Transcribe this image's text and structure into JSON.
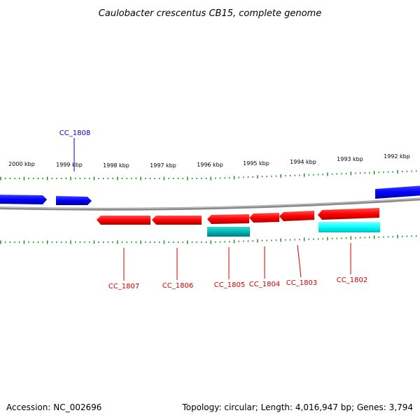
{
  "title": "Caulobacter crescentus CB15, complete genome",
  "footer": {
    "accession": "Accession: NC_002696",
    "summary": "Topology: circular; Length: 4,016,947 bp; Genes: 3,794"
  },
  "colors": {
    "forward_gene": "#0000ff",
    "reverse_gene": "#ff0000",
    "reverse_feature": "#00cccc",
    "reverse_feature_light": "#00ffff",
    "backbone": "#808080",
    "ticks": "#008000",
    "forward_label": "#0000cc",
    "reverse_label": "#cc0000"
  },
  "ruler": {
    "unit": "kbp",
    "ticks": [
      "2000 kbp",
      "1999 kbp",
      "1998 kbp",
      "1997 kbp",
      "1996 kbp",
      "1995 kbp",
      "1994 kbp",
      "1993 kbp",
      "1992 kbp"
    ]
  },
  "genes": [
    {
      "strand": "forward",
      "label": ""
    },
    {
      "strand": "forward",
      "label": "CC_1808"
    },
    {
      "strand": "forward",
      "label": ""
    },
    {
      "strand": "reverse",
      "label": "CC_1807"
    },
    {
      "strand": "reverse",
      "label": "CC_1806"
    },
    {
      "strand": "reverse",
      "label": "CC_1805"
    },
    {
      "strand": "reverse",
      "label": "CC_1804"
    },
    {
      "strand": "reverse",
      "label": "CC_1803"
    },
    {
      "strand": "reverse",
      "label": "CC_1802"
    }
  ]
}
